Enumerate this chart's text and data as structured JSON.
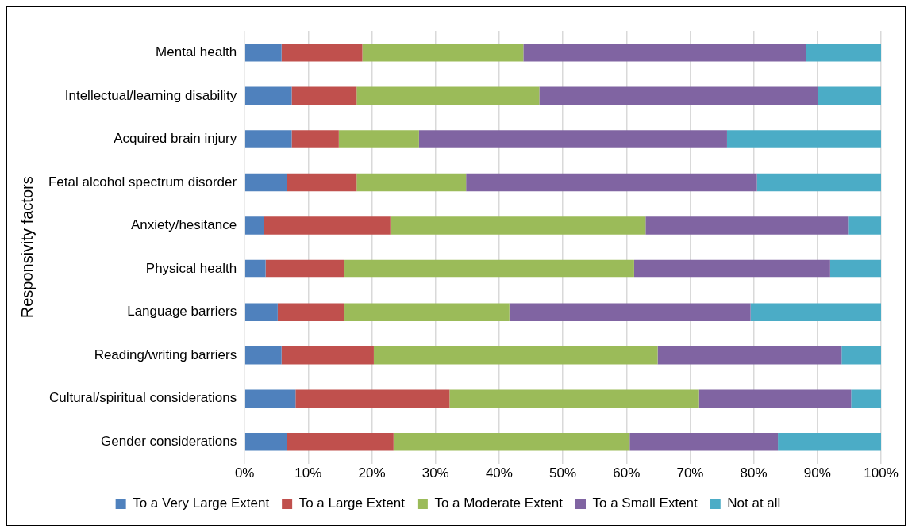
{
  "chart_data": {
    "type": "bar",
    "orientation": "horizontal",
    "stacked": true,
    "ylabel": "Responsivity factors",
    "categories": [
      "Mental health",
      "Intellectual/learning disability",
      "Acquired brain injury",
      "Fetal alcohol spectrum disorder",
      "Anxiety/hesitance",
      "Physical health",
      "Language barriers",
      "Reading/writing barriers",
      "Cultural/spiritual considerations",
      "Gender considerations"
    ],
    "series": [
      {
        "name": "To a Very Large Extent",
        "color": "#4f81bd",
        "values": [
          5.8,
          7.4,
          7.4,
          6.7,
          3.0,
          3.3,
          5.2,
          5.8,
          8.0,
          6.7
        ]
      },
      {
        "name": "To a Large Extent",
        "color": "#c0504d",
        "values": [
          12.7,
          10.2,
          7.4,
          10.9,
          19.9,
          12.4,
          10.5,
          14.5,
          24.2,
          16.7
        ]
      },
      {
        "name": "To a Moderate Extent",
        "color": "#9bbb59",
        "values": [
          25.3,
          28.7,
          12.6,
          17.2,
          40.1,
          45.5,
          25.9,
          44.6,
          39.2,
          37.1
        ]
      },
      {
        "name": "To a Small Extent",
        "color": "#8064a2",
        "values": [
          44.4,
          43.8,
          48.4,
          45.7,
          31.8,
          30.8,
          37.9,
          28.9,
          23.9,
          23.3
        ]
      },
      {
        "name": "Not at all",
        "color": "#4bacc6",
        "values": [
          11.8,
          9.9,
          24.2,
          19.5,
          5.2,
          8.0,
          20.5,
          6.2,
          4.7,
          16.2
        ]
      }
    ],
    "xlim": [
      0,
      100
    ],
    "xticks": [
      {
        "value": 0,
        "label": "0%"
      },
      {
        "value": 10,
        "label": "10%"
      },
      {
        "value": 20,
        "label": "20%"
      },
      {
        "value": 30,
        "label": "30%"
      },
      {
        "value": 40,
        "label": "40%"
      },
      {
        "value": 50,
        "label": "50%"
      },
      {
        "value": 60,
        "label": "60%"
      },
      {
        "value": 70,
        "label": "70%"
      },
      {
        "value": 80,
        "label": "80%"
      },
      {
        "value": 90,
        "label": "90%"
      },
      {
        "value": 100,
        "label": "100%"
      }
    ],
    "grid": "x",
    "legend": "bottom"
  }
}
